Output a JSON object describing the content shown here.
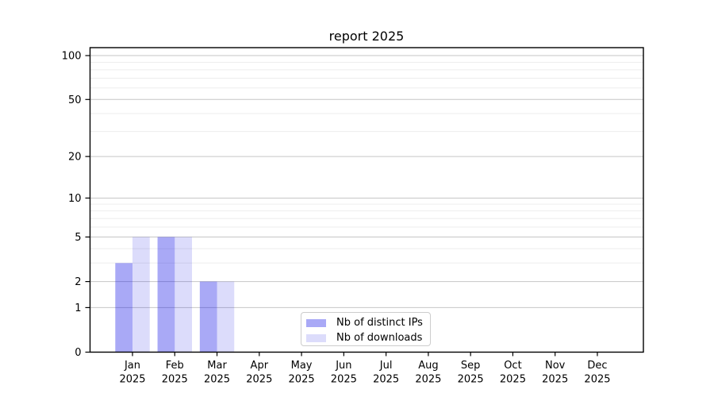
{
  "title": "report 2025",
  "legend": {
    "items": [
      {
        "label": "Nb of distinct IPs",
        "color": "rgba(10,10,230,0.35)"
      },
      {
        "label": "Nb of downloads",
        "color": "rgba(10,10,230,0.14)"
      }
    ]
  },
  "axes": {
    "y_tick_labels": [
      "0",
      "1",
      "2",
      "5",
      "10",
      "20",
      "50",
      "100"
    ],
    "x_tick_labels": [
      {
        "line1": "Jan",
        "line2": "2025"
      },
      {
        "line1": "Feb",
        "line2": "2025"
      },
      {
        "line1": "Mar",
        "line2": "2025"
      },
      {
        "line1": "Apr",
        "line2": "2025"
      },
      {
        "line1": "May",
        "line2": "2025"
      },
      {
        "line1": "Jun",
        "line2": "2025"
      },
      {
        "line1": "Jul",
        "line2": "2025"
      },
      {
        "line1": "Aug",
        "line2": "2025"
      },
      {
        "line1": "Sep",
        "line2": "2025"
      },
      {
        "line1": "Oct",
        "line2": "2025"
      },
      {
        "line1": "Nov",
        "line2": "2025"
      },
      {
        "line1": "Dec",
        "line2": "2025"
      }
    ]
  },
  "colors": {
    "bar_dark": "rgba(10,10,230,0.35)",
    "bar_light": "rgba(10,10,230,0.14)",
    "grid_major": "#c6c6c6",
    "grid_minor": "#ededed",
    "frame": "#000000"
  },
  "chart_data": {
    "type": "bar",
    "title": "report 2025",
    "yscale": "log1p",
    "grid": true,
    "legend_position": "lower center",
    "categories": [
      "Jan 2025",
      "Feb 2025",
      "Mar 2025",
      "Apr 2025",
      "May 2025",
      "Jun 2025",
      "Jul 2025",
      "Aug 2025",
      "Sep 2025",
      "Oct 2025",
      "Nov 2025",
      "Dec 2025"
    ],
    "series": [
      {
        "name": "Nb of distinct IPs",
        "color": "rgba(10,10,230,0.35)",
        "values": [
          3,
          5,
          2,
          0,
          0,
          0,
          0,
          0,
          0,
          0,
          0,
          0
        ]
      },
      {
        "name": "Nb of downloads",
        "color": "rgba(10,10,230,0.14)",
        "values": [
          5,
          5,
          2,
          0,
          0,
          0,
          0,
          0,
          0,
          0,
          0,
          0
        ]
      }
    ],
    "y_major_ticks": [
      0,
      1,
      2,
      5,
      10,
      20,
      50,
      100
    ],
    "y_minor_ticks": [
      3,
      4,
      6,
      7,
      8,
      9,
      30,
      40,
      60,
      70,
      80,
      90
    ],
    "ylim": [
      0,
      113
    ],
    "xlabel": "",
    "ylabel": ""
  }
}
